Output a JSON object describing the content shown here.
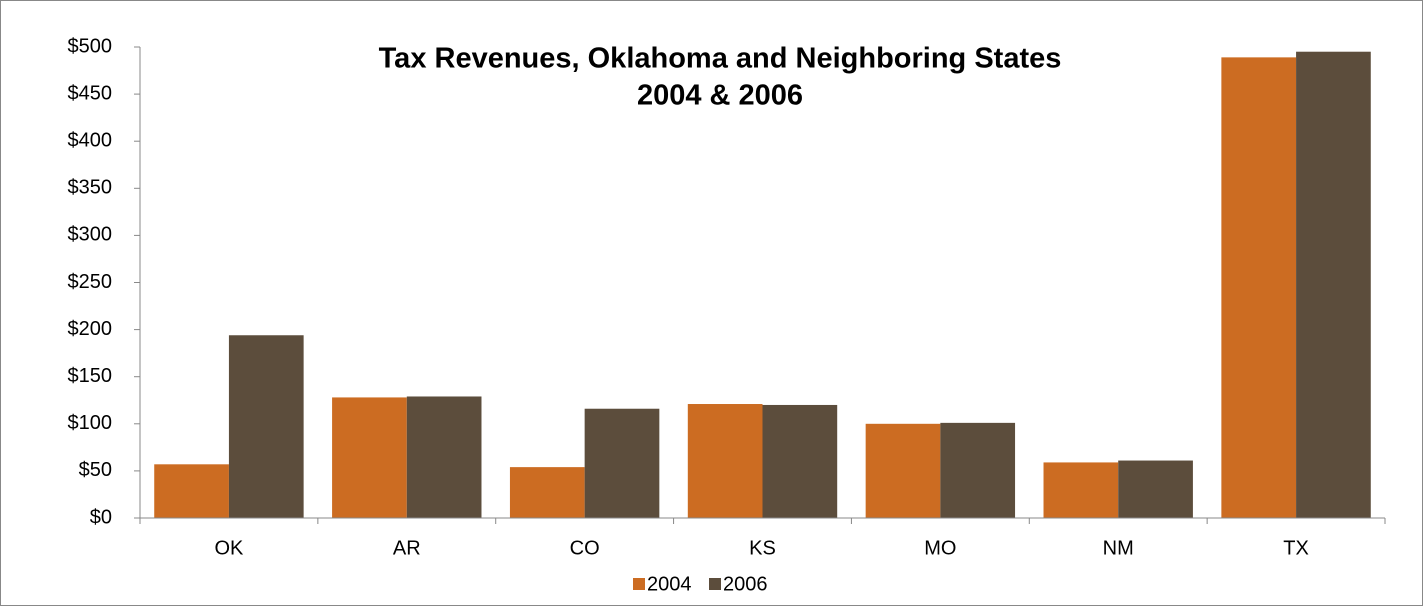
{
  "chart_data": {
    "type": "bar",
    "title": "Tax Revenues, Oklahoma and Neighboring States",
    "subtitle": "2004 & 2006",
    "categories": [
      "OK",
      "AR",
      "CO",
      "KS",
      "MO",
      "NM",
      "TX"
    ],
    "series": [
      {
        "name": "2004",
        "color": "#cc6c22",
        "values": [
          57,
          128,
          54,
          121,
          100,
          59,
          489
        ]
      },
      {
        "name": "2006",
        "color": "#5c4d3c",
        "values": [
          194,
          129,
          116,
          120,
          101,
          61,
          495
        ]
      }
    ],
    "ylim": [
      0,
      500
    ],
    "yticks": [
      {
        "value": 0,
        "label": "$0"
      },
      {
        "value": 50,
        "label": "$50"
      },
      {
        "value": 100,
        "label": "$100"
      },
      {
        "value": 150,
        "label": "$150"
      },
      {
        "value": 200,
        "label": "$200"
      },
      {
        "value": 250,
        "label": "$250"
      },
      {
        "value": 300,
        "label": "$300"
      },
      {
        "value": 350,
        "label": "$350"
      },
      {
        "value": 400,
        "label": "$400"
      },
      {
        "value": 450,
        "label": "$450"
      },
      {
        "value": 500,
        "label": "$500"
      }
    ],
    "legend": "bottom"
  }
}
